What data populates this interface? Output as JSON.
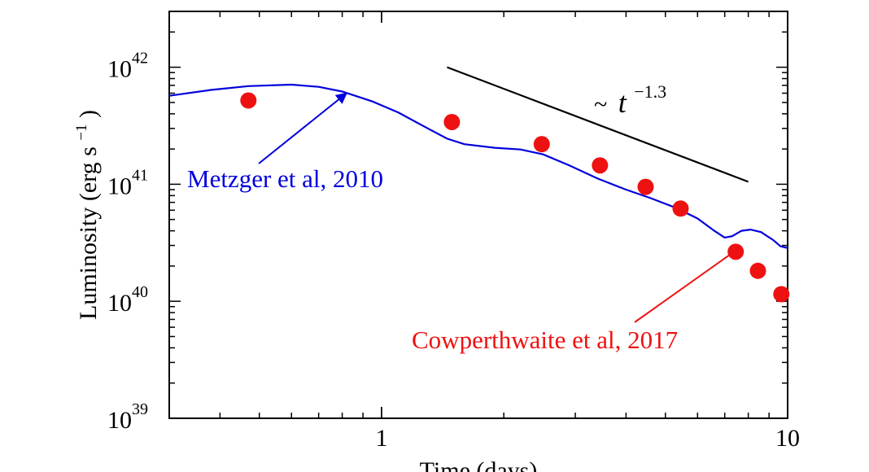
{
  "chart_data": {
    "type": "scatter",
    "xlabel": "Time (days)",
    "ylabel_text": "Luminosity (erg s",
    "ylabel_sup": "−1",
    "ylabel_close": ")",
    "xscale": "log",
    "yscale": "log",
    "xlim": [
      0.3,
      10
    ],
    "ylim": [
      1e+39,
      3e+42
    ],
    "x_ticks": [
      {
        "value": 1,
        "label": "1"
      },
      {
        "value": 10,
        "label": "10"
      }
    ],
    "y_ticks": [
      {
        "value": 1e+39,
        "base": "10",
        "exp": "39"
      },
      {
        "value": 1e+40,
        "base": "10",
        "exp": "40"
      },
      {
        "value": 1e+41,
        "base": "10",
        "exp": "41"
      },
      {
        "value": 1e+42,
        "base": "10",
        "exp": "42"
      }
    ],
    "grid": false,
    "series": [
      {
        "name": "Metzger et al, 2010",
        "kind": "line",
        "color": "#0000dd",
        "points": [
          [
            0.3,
            5.7e+41
          ],
          [
            0.38,
            6.4e+41
          ],
          [
            0.47,
            6.9e+41
          ],
          [
            0.6,
            7.1e+41
          ],
          [
            0.7,
            6.8e+41
          ],
          [
            0.8,
            6.2e+41
          ],
          [
            0.95,
            5.1e+41
          ],
          [
            1.1,
            4.1e+41
          ],
          [
            1.3,
            3e+41
          ],
          [
            1.45,
            2.45e+41
          ],
          [
            1.6,
            2.2e+41
          ],
          [
            1.9,
            2.05e+41
          ],
          [
            2.2,
            1.98e+41
          ],
          [
            2.5,
            1.8e+41
          ],
          [
            2.9,
            1.45e+41
          ],
          [
            3.4,
            1.12e+41
          ],
          [
            4.0,
            9e+40
          ],
          [
            4.6,
            7.6e+40
          ],
          [
            5.3,
            6.3e+40
          ],
          [
            6.0,
            5.1e+40
          ],
          [
            6.6,
            4e+40
          ],
          [
            7.0,
            3.5e+40
          ],
          [
            7.3,
            3.6e+40
          ],
          [
            7.7,
            4e+40
          ],
          [
            8.1,
            4.1e+40
          ],
          [
            8.6,
            3.9e+40
          ],
          [
            9.2,
            3.35e+40
          ],
          [
            9.6,
            2.95e+40
          ],
          [
            10.0,
            2.85e+40
          ]
        ]
      },
      {
        "name": "Cowperthwaite et al, 2017",
        "kind": "points",
        "color": "#ee1111",
        "points": [
          [
            0.47,
            5.2e+41
          ],
          [
            1.49,
            3.4e+41
          ],
          [
            2.48,
            2.2e+41
          ],
          [
            3.45,
            1.45e+41
          ],
          [
            4.47,
            9.5e+40
          ],
          [
            5.45,
            6.2e+40
          ],
          [
            7.45,
            2.65e+40
          ],
          [
            8.45,
            1.82e+40
          ],
          [
            9.65,
            1.15e+40
          ]
        ]
      }
    ],
    "reference_line": {
      "label": "t",
      "prefix": "~",
      "exponent": "−1.3",
      "color": "#000000",
      "x": [
        1.45,
        8.0
      ],
      "y": [
        1e+42,
        1.05e+41
      ]
    },
    "annotations": [
      {
        "text": "Metzger et al, 2010",
        "color": "#0000dd",
        "arrow_to": [
          0.82,
          6e+41
        ]
      },
      {
        "text": "Cowperthwaite et al, 2017",
        "color": "#ee1111",
        "arrow_to": [
          7.6,
          2.85e+40
        ]
      }
    ]
  }
}
